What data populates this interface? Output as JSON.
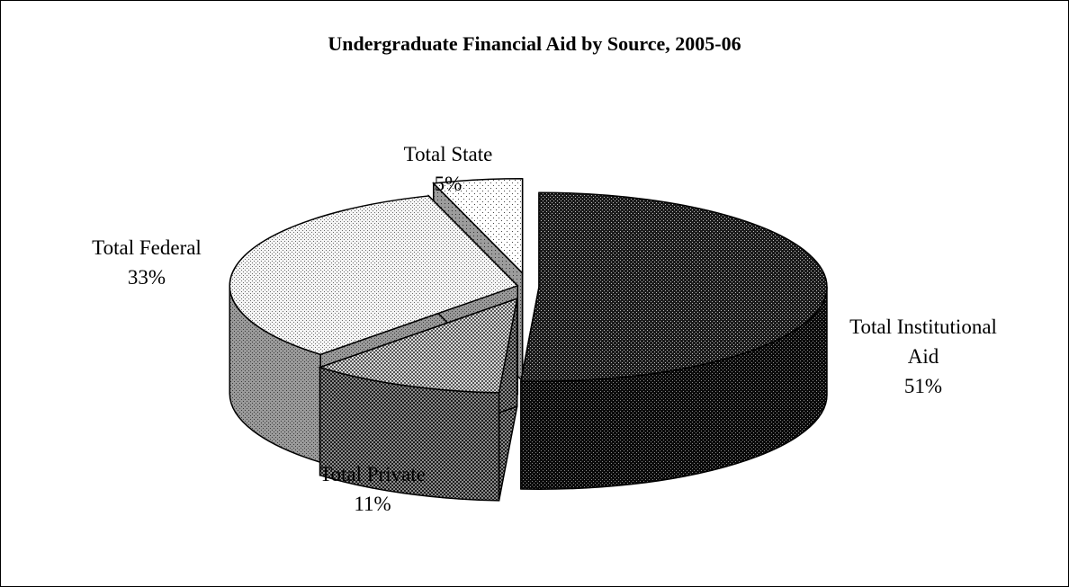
{
  "chart_data": {
    "type": "pie",
    "style": "3d-exploded",
    "title": "Undergraduate Financial Aid by Source, 2005-06",
    "slices": [
      {
        "name": "Total Institutional Aid",
        "label_lines": [
          "Total Institutional",
          "Aid"
        ],
        "value": 51,
        "value_label": "51%",
        "pattern": "dark-dots"
      },
      {
        "name": "Total Private",
        "label_lines": [
          "Total Private"
        ],
        "value": 11,
        "value_label": "11%",
        "pattern": "crosshatch"
      },
      {
        "name": "Total Federal",
        "label_lines": [
          "Total Federal"
        ],
        "value": 33,
        "value_label": "33%",
        "pattern": "light-dots"
      },
      {
        "name": "Total State",
        "label_lines": [
          "Total State"
        ],
        "value": 5,
        "value_label": "5%",
        "pattern": "sparse-dots"
      }
    ],
    "legend": "none",
    "labels": "outside-slices"
  }
}
